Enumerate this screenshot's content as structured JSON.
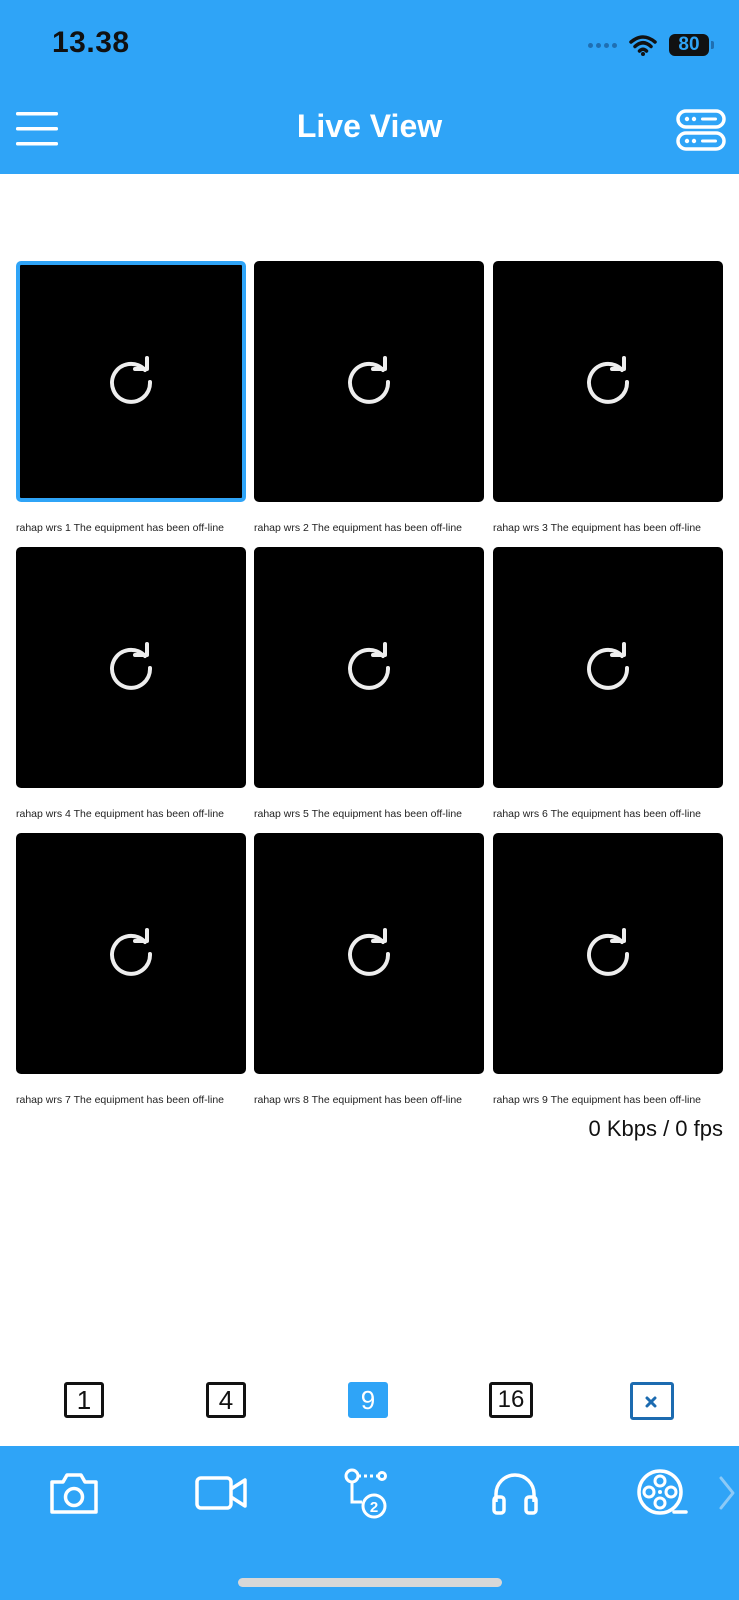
{
  "status_bar": {
    "time": "13.38",
    "battery": "80",
    "icons": [
      "signal-icon",
      "wifi-icon",
      "battery-icon"
    ]
  },
  "header": {
    "title": "Live View",
    "left_icon": "hamburger-menu-icon",
    "right_icon": "device-list-icon"
  },
  "colors": {
    "accent": "#2fa4f7",
    "tile": "#000000",
    "dark_accent": "#1c6bb0"
  },
  "channels": [
    {
      "caption": "rahap wrs 1 The equipment has been off-line",
      "selected": true
    },
    {
      "caption": "rahap wrs 2 The equipment has been off-line",
      "selected": false
    },
    {
      "caption": "rahap wrs 3 The equipment has been off-line",
      "selected": false
    },
    {
      "caption": "rahap wrs 4 The equipment has been off-line",
      "selected": false
    },
    {
      "caption": "rahap wrs 5 The equipment has been off-line",
      "selected": false
    },
    {
      "caption": "rahap wrs 6 The equipment has been off-line",
      "selected": false
    },
    {
      "caption": "rahap wrs 7 The equipment has been off-line",
      "selected": false
    },
    {
      "caption": "rahap wrs 8 The equipment has been off-line",
      "selected": false
    },
    {
      "caption": "rahap wrs 9 The equipment has been off-line",
      "selected": false
    }
  ],
  "stats": "0 Kbps / 0 fps",
  "layout_options": {
    "one": "1",
    "four": "4",
    "nine": "9",
    "sixteen": "16",
    "active": "9"
  },
  "toolbar": [
    "camera-icon",
    "video-record-icon",
    "stream-switch-icon",
    "headphones-icon",
    "playback-reel-icon",
    "chevron-right-icon"
  ]
}
